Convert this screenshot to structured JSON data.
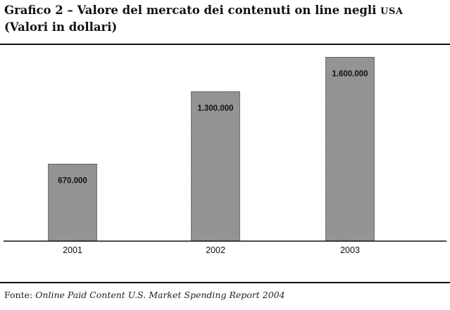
{
  "title": {
    "main": "Grafico 2 – Valore del mercato dei contenuti on line negli",
    "country": "USA",
    "subtitle": "(Valori in dollari)"
  },
  "source": {
    "prefix": "Fonte:",
    "report": "Online Paid Content U.S. Market Spending Report 2004"
  },
  "chart_data": {
    "type": "bar",
    "categories": [
      "2001",
      "2002",
      "2003"
    ],
    "values": [
      670000,
      1300000,
      1600000
    ],
    "value_labels": [
      "670.000",
      "1.300.000",
      "1.600.000"
    ],
    "title": "Grafico 2 – Valore del mercato dei contenuti on line negli USA",
    "subtitle": "(Valori in dollari)",
    "ylim": [
      0,
      1620000
    ],
    "grid": false,
    "bar_color": "#8f8f8f",
    "bar_border_color": "#2a2a2a"
  }
}
